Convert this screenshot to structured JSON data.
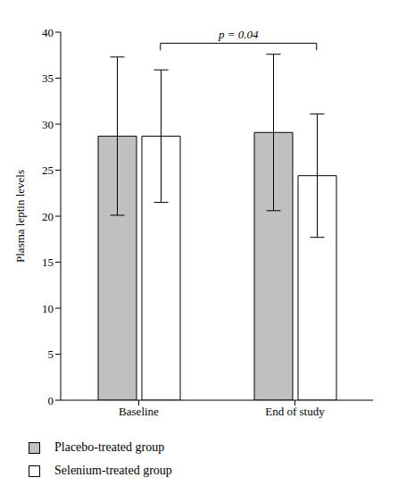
{
  "chart_data": {
    "type": "bar",
    "categories": [
      "Baseline",
      "End of study"
    ],
    "y_label": "Plasma leptin levels",
    "series": [
      {
        "name": "Placebo-treated group",
        "color": "#c0c0c0",
        "values": [
          28.7,
          29.1
        ],
        "errors": [
          8.6,
          8.5
        ]
      },
      {
        "name": "Selenium-treated group",
        "color": "#ffffff",
        "values": [
          28.7,
          24.4
        ],
        "errors": [
          7.2,
          6.7
        ]
      }
    ],
    "ylim": [
      0,
      40
    ],
    "yticks": [
      0,
      5,
      10,
      15,
      20,
      25,
      30,
      35,
      40
    ],
    "grid": false,
    "legend": "bottom",
    "annotations": [
      {
        "text": "p = 0.04",
        "from": [
          0,
          1
        ],
        "to": [
          1,
          1
        ],
        "y": 38.8
      }
    ]
  }
}
